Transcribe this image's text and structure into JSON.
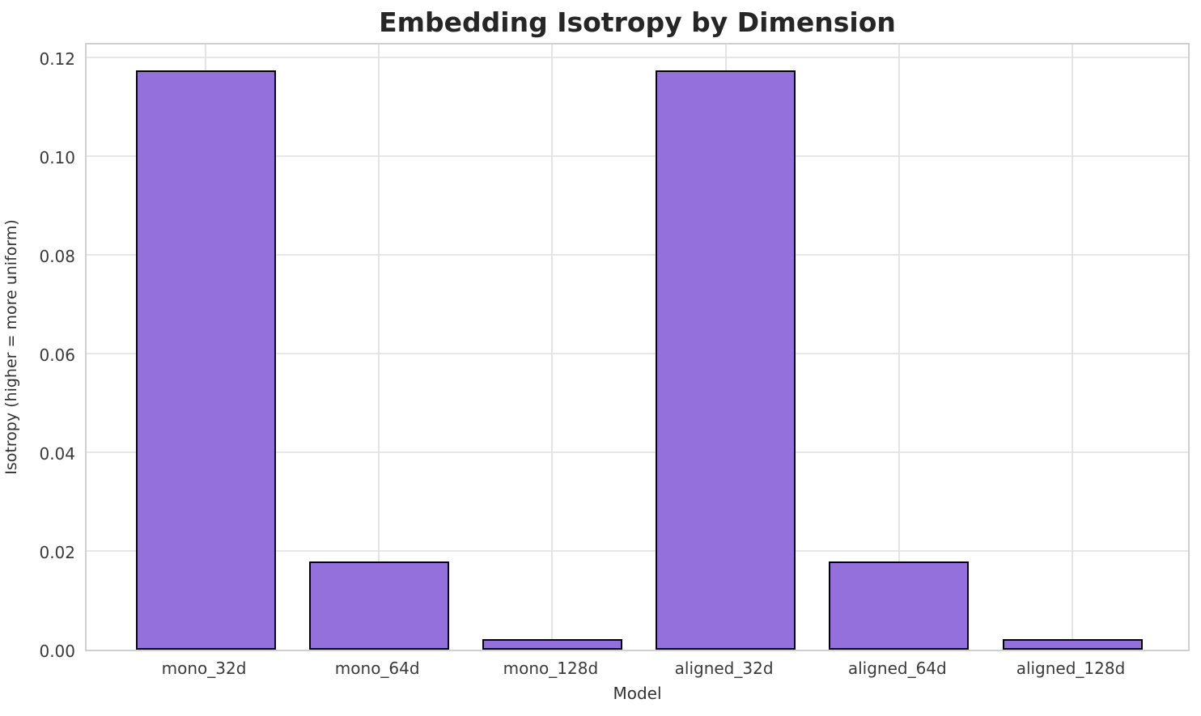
{
  "chart_data": {
    "type": "bar",
    "title": "Embedding Isotropy by Dimension",
    "xlabel": "Model",
    "ylabel": "Isotropy (higher = more uniform)",
    "categories": [
      "mono_32d",
      "mono_64d",
      "mono_128d",
      "aligned_32d",
      "aligned_64d",
      "aligned_128d"
    ],
    "values": [
      0.1173,
      0.0178,
      0.0021,
      0.1173,
      0.0178,
      0.0021
    ],
    "ylim": [
      0,
      0.1232
    ],
    "yticks": [
      0,
      0.02,
      0.04,
      0.06,
      0.08,
      0.1,
      0.12
    ],
    "ytick_labels": [
      "0.00",
      "0.02",
      "0.04",
      "0.06",
      "0.08",
      "0.10",
      "0.12"
    ],
    "grid": true,
    "legend_position": "none",
    "bar_color": "#9370DB",
    "bar_edge_color": "#000000",
    "grid_color": "#e7e7e7",
    "spine_color": "#d0d0d0",
    "background_color": "#ffffff",
    "title_color": "#262626",
    "tick_label_color": "#3a3a3a"
  }
}
